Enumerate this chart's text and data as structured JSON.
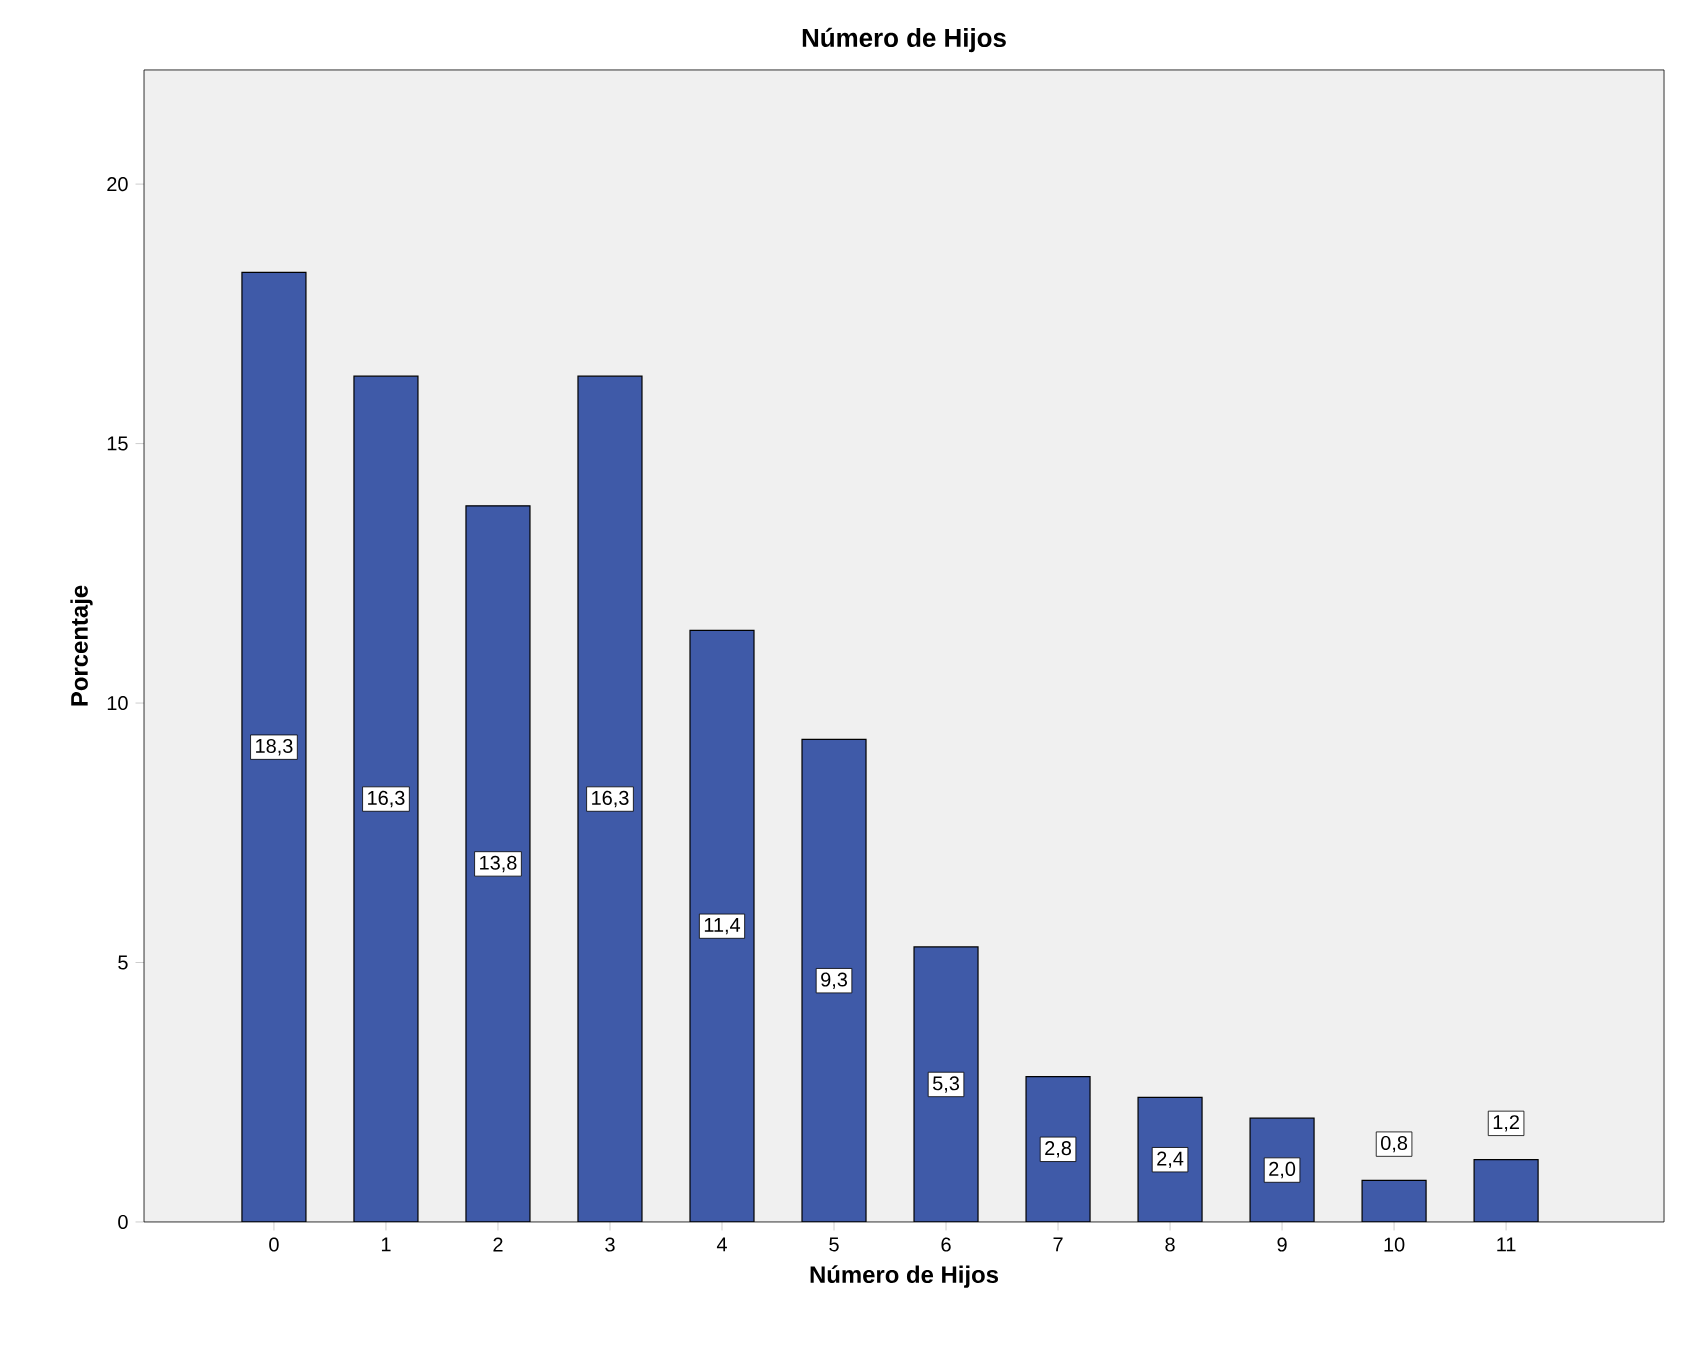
{
  "chart_data": {
    "type": "bar",
    "title": "Número de Hijos",
    "xlabel": "Número de Hijos",
    "ylabel": "Porcentaje",
    "categories": [
      "0",
      "1",
      "2",
      "3",
      "4",
      "5",
      "6",
      "7",
      "8",
      "9",
      "10",
      "11"
    ],
    "values": [
      18.3,
      16.3,
      13.8,
      16.3,
      11.4,
      9.3,
      5.3,
      2.8,
      2.4,
      2.0,
      0.8,
      1.2
    ],
    "value_labels": [
      "18,3",
      "16,3",
      "13,8",
      "16,3",
      "11,4",
      "9,3",
      "5,3",
      "2,8",
      "2,4",
      "2,0",
      "0,8",
      "1,2"
    ],
    "color": "#3f5aa8",
    "ylim": [
      0,
      22.2
    ],
    "yticks": [
      0,
      5,
      10,
      15,
      20
    ],
    "grid": false
  }
}
